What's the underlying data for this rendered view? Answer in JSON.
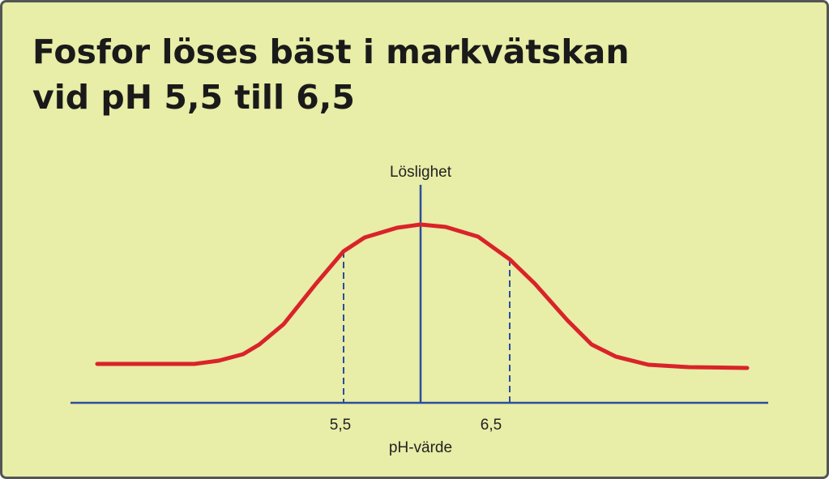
{
  "title": [
    "Fosfor löses bäst i markvätskan",
    "vid pH 5,5 till 6,5"
  ],
  "y_axis_label": "Löslighet",
  "x_axis_label": "pH-värde",
  "x_tick_labels": [
    "5,5",
    "6,5"
  ]
}
